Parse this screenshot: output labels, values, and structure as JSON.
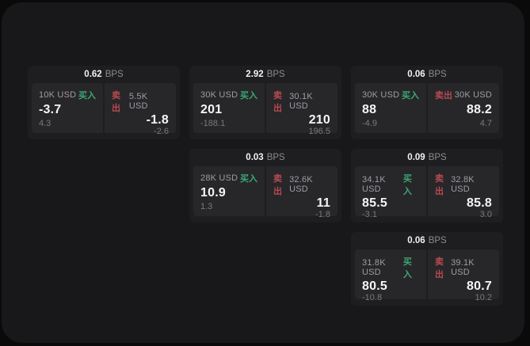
{
  "labels": {
    "bps_unit": "BPS",
    "buy": "买入",
    "sell": "卖出"
  },
  "colors": {
    "page_bg": "#0a0a0b",
    "window_bg": "#18181a",
    "card_bg": "#1e1e20",
    "tile_bg": "#27272a",
    "buy_green": "#3aa973",
    "sell_red": "#b84a50",
    "value_white": "#f5f5f6",
    "label_gray": "#9d9da2",
    "delta_gray": "#79797e"
  },
  "cards": [
    {
      "row": 1,
      "col": 1,
      "bps": "0.62",
      "buy": {
        "amount": "10K USD",
        "value": "-3.7",
        "delta": "4.3"
      },
      "sell": {
        "amount": "5.5K USD",
        "value": "-1.8",
        "delta": "-2.6"
      }
    },
    {
      "row": 1,
      "col": 2,
      "bps": "2.92",
      "buy": {
        "amount": "30K USD",
        "value": "201",
        "delta": "-188.1"
      },
      "sell": {
        "amount": "30.1K USD",
        "value": "210",
        "delta": "196.5"
      }
    },
    {
      "row": 1,
      "col": 3,
      "bps": "0.06",
      "buy": {
        "amount": "30K USD",
        "value": "88",
        "delta": "-4.9"
      },
      "sell": {
        "amount": "30K USD",
        "value": "88.2",
        "delta": "4.7"
      }
    },
    {
      "row": 2,
      "col": 2,
      "bps": "0.03",
      "buy": {
        "amount": "28K USD",
        "value": "10.9",
        "delta": "1.3"
      },
      "sell": {
        "amount": "32.6K USD",
        "value": "11",
        "delta": "-1.8"
      }
    },
    {
      "row": 2,
      "col": 3,
      "bps": "0.09",
      "buy": {
        "amount": "34.1K USD",
        "value": "85.5",
        "delta": "-3.1"
      },
      "sell": {
        "amount": "32.8K USD",
        "value": "85.8",
        "delta": "3.0"
      }
    },
    {
      "row": 3,
      "col": 3,
      "bps": "0.06",
      "buy": {
        "amount": "31.8K USD",
        "value": "80.5",
        "delta": "-10.8"
      },
      "sell": {
        "amount": "39.1K USD",
        "value": "80.7",
        "delta": "10.2"
      }
    }
  ]
}
